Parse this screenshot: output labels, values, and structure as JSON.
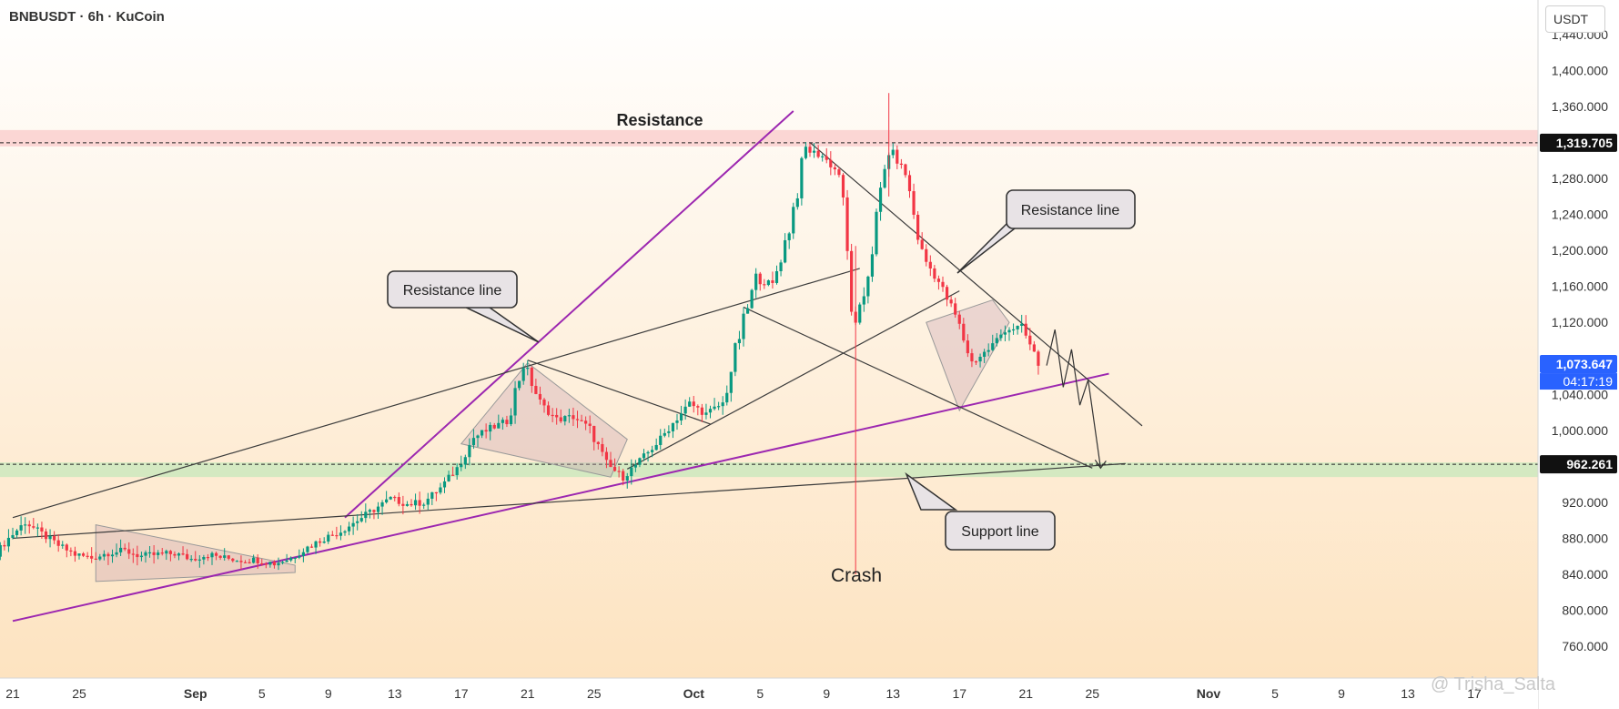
{
  "header": {
    "symbol_line": "BNBUSDT · 6h · KuCoin",
    "currency_button": "USDT"
  },
  "watermark": "@ Trisha_Salta",
  "colors": {
    "bull": "#089981",
    "bear": "#f23645",
    "trendline": "#3c3c3c",
    "purple": "#9c27b0",
    "resistance_zone": "#f9c9c9",
    "support_zone": "#c9e8bd",
    "bg_top": "#ffffff",
    "bg_bottom": "#fde3c0",
    "price_badge": "#2962ff"
  },
  "chart_data": {
    "type": "candlestick",
    "symbol": "BNBUSDT",
    "interval": "6h",
    "exchange": "KuCoin",
    "ylim": [
      720,
      1470
    ],
    "y_ticks": [
      760,
      800,
      840,
      880,
      920,
      960,
      1000,
      1040,
      1080,
      1120,
      1160,
      1200,
      1240,
      1280,
      1320,
      1360,
      1400,
      1440
    ],
    "y_tick_labels": [
      "760.000",
      "800.000",
      "840.000",
      "880.000",
      "920.000",
      "",
      "1,000.000",
      "1,040.000",
      "",
      "1,120.000",
      "1,160.000",
      "1,200.000",
      "1,240.000",
      "1,280.000",
      "",
      "1,360.000",
      "1,400.000",
      "1,440.000"
    ],
    "x_range": [
      "2025-08-20T00:00",
      "2025-11-22T00:00"
    ],
    "x_ticks": [
      {
        "date": "2025-08-21",
        "label": "21"
      },
      {
        "date": "2025-08-25",
        "label": "25"
      },
      {
        "date": "2025-09-01",
        "label": "Sep"
      },
      {
        "date": "2025-09-05",
        "label": "5"
      },
      {
        "date": "2025-09-09",
        "label": "9"
      },
      {
        "date": "2025-09-13",
        "label": "13"
      },
      {
        "date": "2025-09-17",
        "label": "17"
      },
      {
        "date": "2025-09-21",
        "label": "21"
      },
      {
        "date": "2025-09-25",
        "label": "25"
      },
      {
        "date": "2025-10-01",
        "label": "Oct"
      },
      {
        "date": "2025-10-05",
        "label": "5"
      },
      {
        "date": "2025-10-09",
        "label": "9"
      },
      {
        "date": "2025-10-13",
        "label": "13"
      },
      {
        "date": "2025-10-17",
        "label": "17"
      },
      {
        "date": "2025-10-21",
        "label": "21"
      },
      {
        "date": "2025-10-25",
        "label": "25"
      },
      {
        "date": "2025-11-01",
        "label": "Nov"
      },
      {
        "date": "2025-11-05",
        "label": "5"
      },
      {
        "date": "2025-11-09",
        "label": "9"
      },
      {
        "date": "2025-11-13",
        "label": "13"
      },
      {
        "date": "2025-11-17",
        "label": "17"
      }
    ],
    "closes_daily": [
      [
        "2025-08-20",
        858
      ],
      [
        "2025-08-21",
        880
      ],
      [
        "2025-08-22",
        898
      ],
      [
        "2025-08-23",
        885
      ],
      [
        "2025-08-24",
        872
      ],
      [
        "2025-08-25",
        862
      ],
      [
        "2025-08-26",
        858
      ],
      [
        "2025-08-27",
        864
      ],
      [
        "2025-08-28",
        866
      ],
      [
        "2025-08-29",
        860
      ],
      [
        "2025-08-30",
        862
      ],
      [
        "2025-08-31",
        863
      ],
      [
        "2025-09-01",
        857
      ],
      [
        "2025-09-02",
        862
      ],
      [
        "2025-09-03",
        858
      ],
      [
        "2025-09-04",
        856
      ],
      [
        "2025-09-05",
        856
      ],
      [
        "2025-09-06",
        852
      ],
      [
        "2025-09-07",
        858
      ],
      [
        "2025-09-08",
        870
      ],
      [
        "2025-09-09",
        880
      ],
      [
        "2025-09-10",
        888
      ],
      [
        "2025-09-11",
        900
      ],
      [
        "2025-09-12",
        912
      ],
      [
        "2025-09-13",
        924
      ],
      [
        "2025-09-14",
        918
      ],
      [
        "2025-09-15",
        920
      ],
      [
        "2025-09-16",
        936
      ],
      [
        "2025-09-17",
        958
      ],
      [
        "2025-09-18",
        992
      ],
      [
        "2025-09-19",
        1002
      ],
      [
        "2025-09-20",
        1010
      ],
      [
        "2025-09-21",
        1075
      ],
      [
        "2025-09-22",
        1030
      ],
      [
        "2025-09-23",
        1012
      ],
      [
        "2025-09-24",
        1015
      ],
      [
        "2025-09-25",
        1002
      ],
      [
        "2025-09-26",
        962
      ],
      [
        "2025-09-27",
        948
      ],
      [
        "2025-09-28",
        966
      ],
      [
        "2025-09-29",
        985
      ],
      [
        "2025-09-30",
        1008
      ],
      [
        "2025-10-01",
        1030
      ],
      [
        "2025-10-02",
        1018
      ],
      [
        "2025-10-03",
        1030
      ],
      [
        "2025-10-04",
        1105
      ],
      [
        "2025-10-05",
        1168
      ],
      [
        "2025-10-06",
        1162
      ],
      [
        "2025-10-07",
        1225
      ],
      [
        "2025-10-08",
        1312
      ],
      [
        "2025-10-09",
        1305
      ],
      [
        "2025-10-10",
        1285
      ],
      [
        "2025-10-11",
        1098
      ],
      [
        "2025-10-12",
        1205
      ],
      [
        "2025-10-13",
        1315
      ],
      [
        "2025-10-14",
        1285
      ],
      [
        "2025-10-15",
        1195
      ],
      [
        "2025-10-16",
        1165
      ],
      [
        "2025-10-17",
        1128
      ],
      [
        "2025-10-18",
        1075
      ],
      [
        "2025-10-19",
        1090
      ],
      [
        "2025-10-20",
        1112
      ],
      [
        "2025-10-21",
        1115
      ],
      [
        "2025-10-22",
        1074
      ]
    ],
    "levels": [
      {
        "name": "Resistance",
        "price": 1319.705,
        "label": "1,319.705"
      },
      {
        "name": "Support",
        "price": 962.261,
        "label": "962.261"
      }
    ],
    "current_price": {
      "label": "1,073.647",
      "price": 1073.647,
      "countdown": "04:17:19"
    },
    "annotations": [
      "Resistance",
      "Resistance line",
      "Resistance line",
      "Support line",
      "Crash"
    ],
    "projection_path": [
      [
        "2025-10-22T06:00",
        1072
      ],
      [
        "2025-10-22T18:00",
        1112
      ],
      [
        "2025-10-23T06:00",
        1048
      ],
      [
        "2025-10-23T18:00",
        1090
      ],
      [
        "2025-10-24T06:00",
        1028
      ],
      [
        "2025-10-24T18:00",
        1056
      ],
      [
        "2025-10-25T12:00",
        958
      ]
    ],
    "lines": [
      {
        "name": "rising-purple-channel-upper",
        "color": "purple",
        "points": [
          [
            "2025-09-10",
            903
          ],
          [
            "2025-10-07",
            1355
          ]
        ]
      },
      {
        "name": "rising-purple-support",
        "color": "purple",
        "points": [
          [
            "2025-08-21",
            788
          ],
          [
            "2025-10-26",
            1063
          ]
        ]
      },
      {
        "name": "long-rising-line",
        "color": "trendline",
        "points": [
          [
            "2025-08-21",
            903
          ],
          [
            "2025-10-11",
            1180
          ]
        ]
      },
      {
        "name": "flat-support-line",
        "color": "trendline",
        "points": [
          [
            "2025-08-21",
            880
          ],
          [
            "2025-10-27",
            963
          ]
        ]
      },
      {
        "name": "descending-resistance",
        "color": "trendline",
        "points": [
          [
            "2025-10-08",
            1320
          ],
          [
            "2025-10-28",
            1005
          ]
        ]
      },
      {
        "name": "mid-rising-line",
        "color": "trendline",
        "points": [
          [
            "2025-09-27",
            957
          ],
          [
            "2025-10-17",
            1155
          ]
        ]
      },
      {
        "name": "mid-falling-line",
        "color": "trendline",
        "points": [
          [
            "2025-10-04",
            1137
          ],
          [
            "2025-10-25",
            958
          ]
        ]
      },
      {
        "name": "flag-line",
        "color": "trendline",
        "points": [
          [
            "2025-09-21",
            1078
          ],
          [
            "2025-10-02",
            1007
          ]
        ]
      }
    ]
  }
}
